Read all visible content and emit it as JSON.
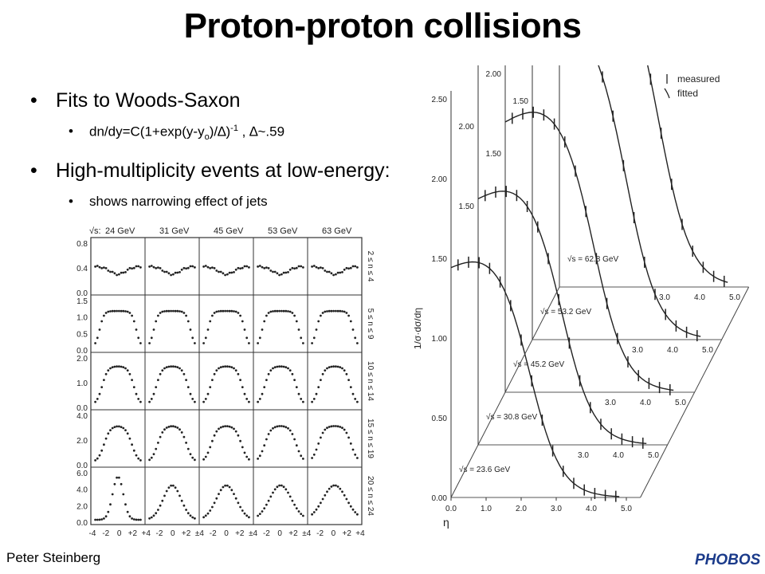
{
  "slide": {
    "title": "Proton-proton collisions",
    "bullets": [
      {
        "text": "Fits to Woods-Saxon",
        "sub": "dn/dy=C(1+exp(y-y",
        "sub_o": "o",
        "sub_tail": ")/∆)",
        "sub_exp": "-1",
        "sub_end": " ,  ∆~.59"
      },
      {
        "text": "High-multiplicity events at low-energy:",
        "sub": "shows narrowing effect of jets"
      }
    ],
    "footer": "Peter Steinberg",
    "logo": "PHOBOS"
  },
  "chart_data": [
    {
      "type": "scatter",
      "panel_grid": "5x5",
      "columns": [
        "24 GeV",
        "31 GeV",
        "45 GeV",
        "53 GeV",
        "63 GeV"
      ],
      "column_prefix": "√s:",
      "rows": [
        "2 ≤ n ≤ 4",
        "5 ≤ n ≤ 9",
        "10 ≤ n ≤ 14",
        "15 ≤ n ≤ 19",
        "20 ≤ n ≤ 24"
      ],
      "y_ticks": [
        [
          "0.8",
          "0.4",
          "0.0"
        ],
        [
          "1.5",
          "1.0",
          "0.5",
          "0.0"
        ],
        [
          "2.0",
          "1.0",
          "0.0"
        ],
        [
          "4.0",
          "2.0",
          "0.0"
        ],
        [
          "6.0",
          "4.0",
          "2.0",
          "0.0"
        ]
      ],
      "x_ticks": [
        "-4",
        "-2",
        "0",
        "+2",
        "+4",
        "-2",
        "0",
        "+2",
        "±4",
        "-2",
        "0",
        "+2",
        "±4",
        "-2",
        "0",
        "+2",
        "±4",
        "-2",
        "0",
        "+2",
        "+4"
      ],
      "xlim": [
        -4,
        4
      ]
    },
    {
      "type": "line",
      "legend": [
        "measured",
        "fitted"
      ],
      "ylabel": "1/σ·dσ/dη",
      "xlabel": "η",
      "x_ticks": [
        "0.0",
        "1.0",
        "2.0",
        "3.0",
        "4.0",
        "5.0"
      ],
      "y_ticks": [
        "0.00",
        "0.50",
        "1.00",
        "1.50",
        "2.00",
        "2.50"
      ],
      "series": [
        {
          "name": "√s = 23.6 GeV",
          "peak": 1.45
        },
        {
          "name": "√s = 30.8 GeV",
          "peak": 1.55
        },
        {
          "name": "√s = 45.2 GeV",
          "peak": 1.7
        },
        {
          "name": "√s = 53.2 GeV",
          "peak": 1.9
        },
        {
          "name": "√s = 62.8 GeV",
          "peak": 2.0
        }
      ],
      "back_panel_x_ticks": [
        "3.0",
        "4.0",
        "5.0"
      ]
    }
  ]
}
